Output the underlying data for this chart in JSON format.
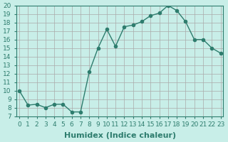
{
  "x": [
    0,
    1,
    2,
    3,
    4,
    5,
    6,
    7,
    8,
    9,
    10,
    11,
    12,
    13,
    14,
    15,
    16,
    17,
    18,
    19,
    20,
    21,
    22,
    23
  ],
  "y": [
    10,
    8.3,
    8.4,
    8.0,
    8.4,
    8.4,
    7.5,
    7.5,
    12.2,
    15.0,
    17.2,
    15.2,
    17.5,
    17.7,
    18.1,
    18.8,
    19.1,
    20.0,
    19.4,
    18.1,
    16.0,
    16.0,
    15.0,
    14.4
  ],
  "line_color": "#2e7d6e",
  "bg_color": "#c8eee8",
  "grid_color": "#aaaaaa",
  "xlabel": "Humidex (Indice chaleur)",
  "ylim": [
    7,
    20
  ],
  "xlim": [
    0,
    23
  ],
  "yticks": [
    7,
    8,
    9,
    10,
    11,
    12,
    13,
    14,
    15,
    16,
    17,
    18,
    19,
    20
  ],
  "xticks": [
    0,
    1,
    2,
    3,
    4,
    5,
    6,
    7,
    8,
    9,
    10,
    11,
    12,
    13,
    14,
    15,
    16,
    17,
    18,
    19,
    20,
    21,
    22,
    23
  ],
  "tick_fontsize": 6.5,
  "label_fontsize": 8,
  "marker_size": 3
}
